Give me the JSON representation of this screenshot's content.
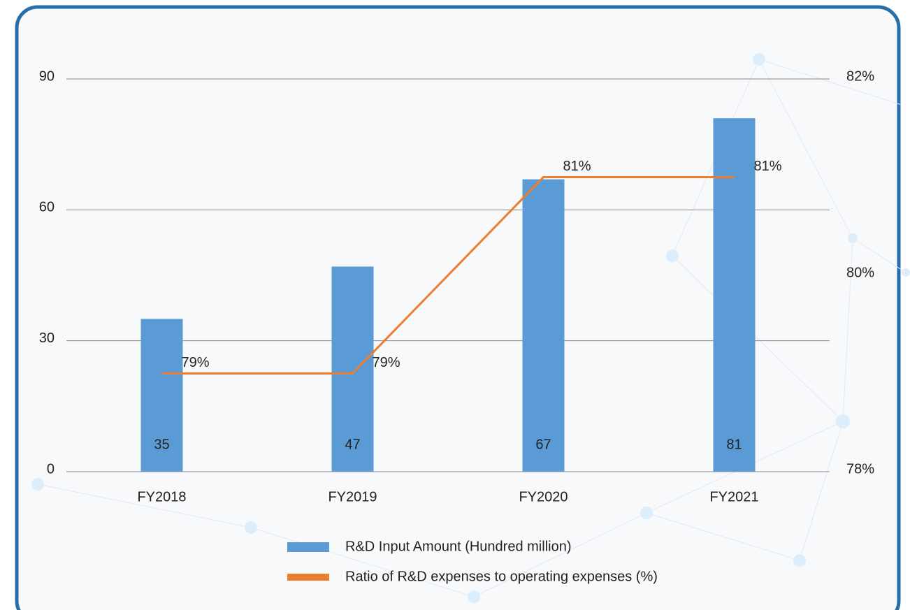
{
  "chart_data": {
    "type": "bar_line",
    "categories": [
      "FY2018",
      "FY2019",
      "FY2020",
      "FY2021"
    ],
    "series": [
      {
        "name": "R&D Input Amount (Hundred million)",
        "type": "bar",
        "color": "#5b9bd5",
        "axis": "y",
        "values": [
          35,
          47,
          67,
          81
        ]
      },
      {
        "name": "Ratio of R&D expenses to operating expenses (%)",
        "type": "line",
        "color": "#ed7d31",
        "axis": "y2",
        "values": [
          79,
          79,
          81,
          81
        ],
        "value_labels": [
          "79%",
          "79%",
          "81%",
          "81%"
        ]
      }
    ],
    "ylim": [
      0,
      90
    ],
    "yticks": [
      0,
      30,
      60,
      90
    ],
    "y2lim": [
      78,
      82
    ],
    "y2ticks": [
      {
        "value": 78,
        "label": "78%"
      },
      {
        "value": 80,
        "label": "80%"
      },
      {
        "value": 82,
        "label": "82%"
      }
    ],
    "grid": true,
    "legend": "bottom"
  }
}
